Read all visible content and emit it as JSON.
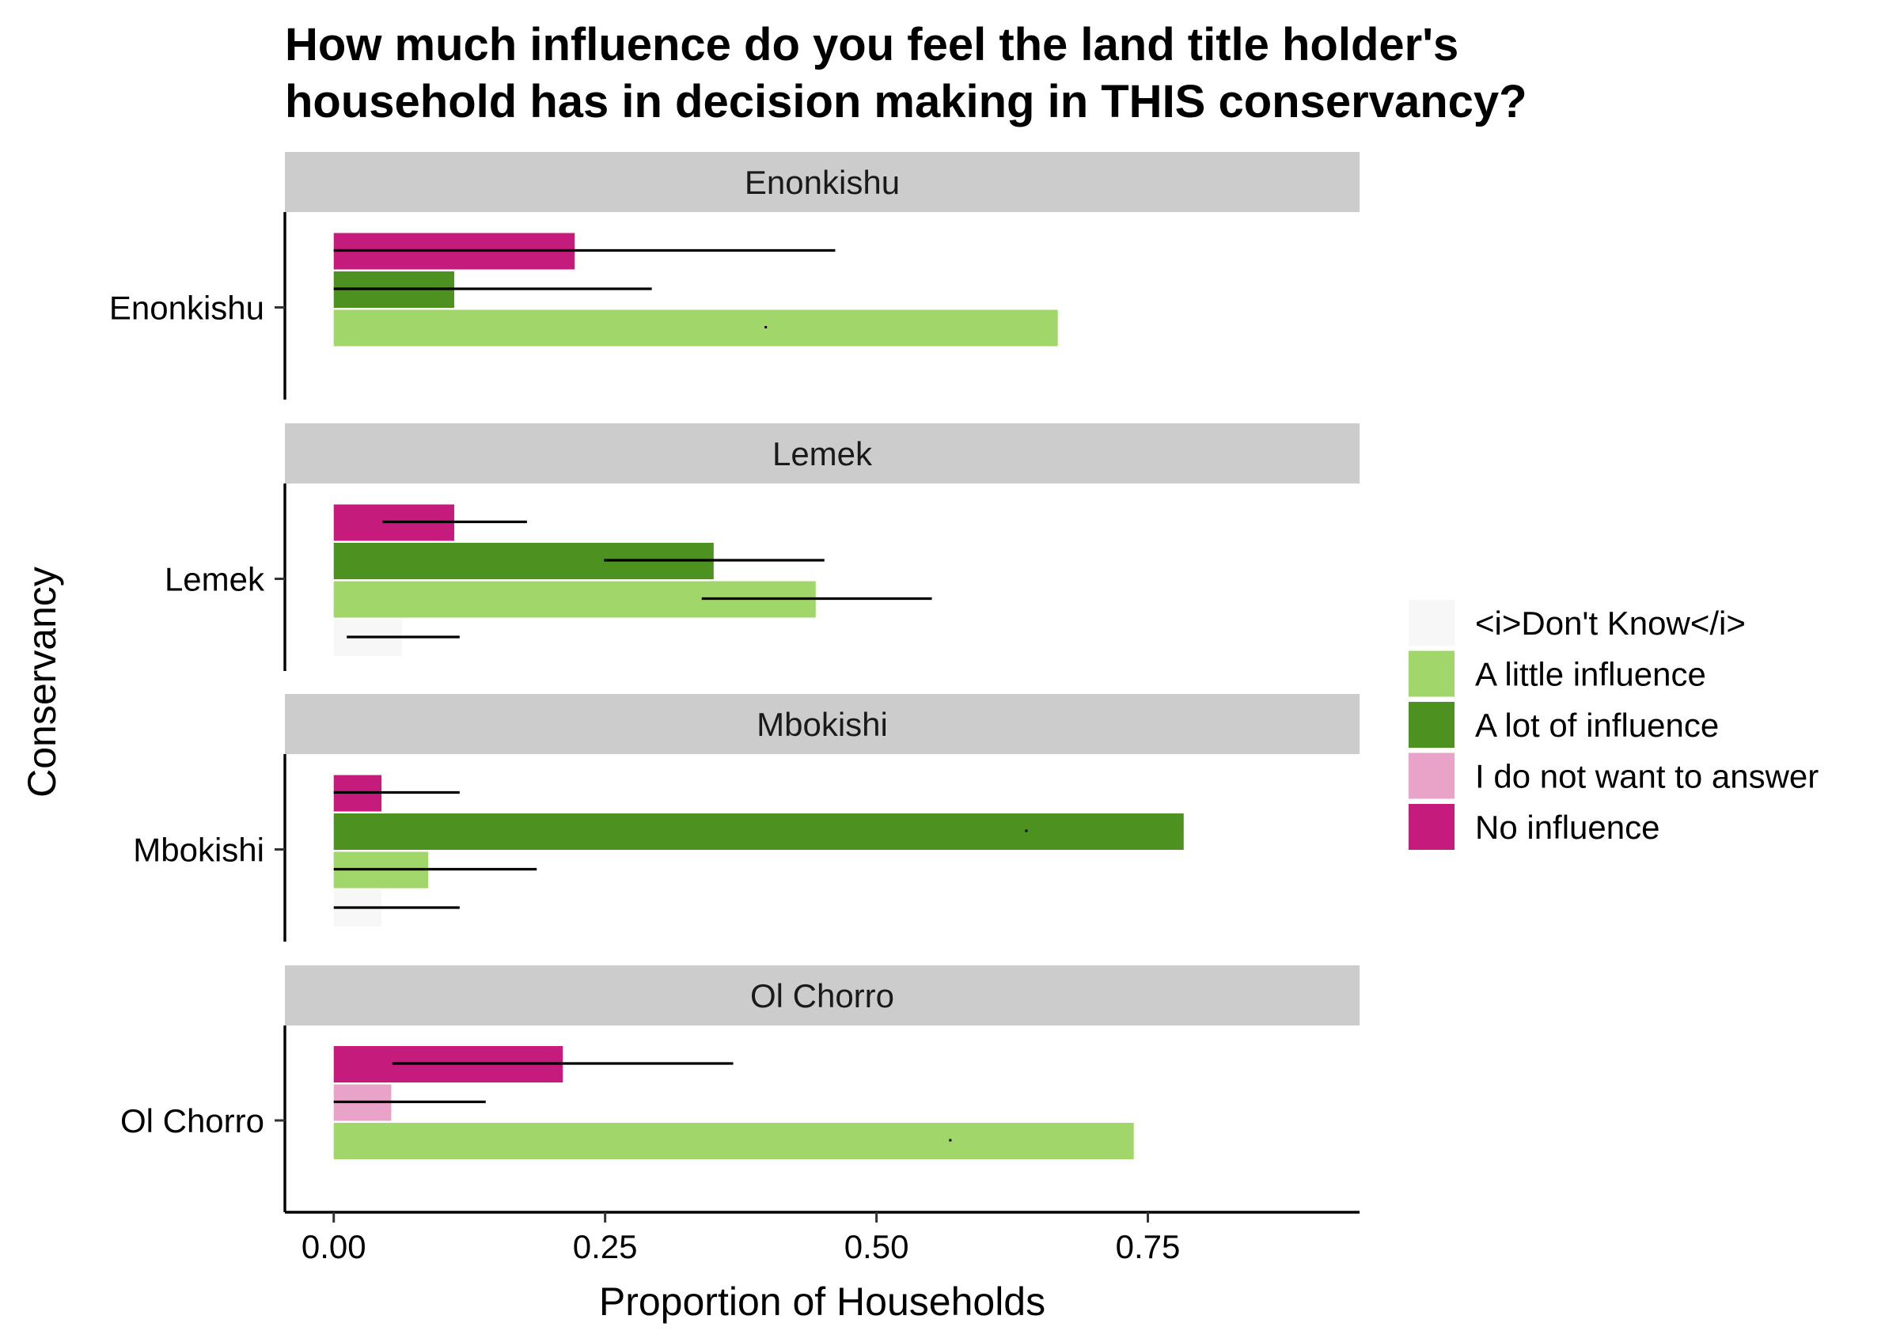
{
  "chart_data": {
    "type": "bar",
    "orientation": "horizontal",
    "faceted": true,
    "title": "How much influence do you feel the land title holder's household has in decision making in THIS conservancy?",
    "title_lines": [
      "How much influence do you feel the land title holder's",
      "household has in decision making in THIS conservancy?"
    ],
    "xlabel": "Proportion of Households",
    "ylabel": "Conservancy",
    "xlim": [
      -0.045,
      0.945
    ],
    "x_ticks": [
      0,
      0.25,
      0.5,
      0.75
    ],
    "x_tick_labels": [
      "0.00",
      "0.25",
      "0.50",
      "0.75"
    ],
    "grid": false,
    "legend_position": "right",
    "legend": [
      {
        "name": "<i>Don't Know</i>",
        "color": "#f7f7f7"
      },
      {
        "name": "A little influence",
        "color": "#a1d76a"
      },
      {
        "name": "A lot of influence",
        "color": "#4d9221"
      },
      {
        "name": "I do not want to answer",
        "color": "#e9a3c9"
      },
      {
        "name": "No influence",
        "color": "#c51b7d"
      }
    ],
    "panels": [
      {
        "strip": "Enonkishu",
        "category": "Enonkishu",
        "bars": [
          {
            "series": "No influence",
            "slot": 0,
            "value": 0.222,
            "err": [
              0.0,
              0.462
            ]
          },
          {
            "series": "A lot of influence",
            "slot": 1,
            "value": 0.111,
            "err": [
              0.0,
              0.293
            ]
          },
          {
            "series": "A little influence",
            "slot": 2,
            "value": 0.667,
            "err": [
              0.398,
              0.398
            ]
          }
        ]
      },
      {
        "strip": "Lemek",
        "category": "Lemek",
        "bars": [
          {
            "series": "No influence",
            "slot": 0,
            "value": 0.111,
            "err": [
              0.045,
              0.178
            ]
          },
          {
            "series": "A lot of influence",
            "slot": 1,
            "value": 0.35,
            "err": [
              0.249,
              0.452
            ]
          },
          {
            "series": "A little influence",
            "slot": 2,
            "value": 0.444,
            "err": [
              0.339,
              0.551
            ]
          },
          {
            "series": "<i>Don't Know</i>",
            "slot": 3,
            "value": 0.063,
            "err": [
              0.012,
              0.116
            ]
          }
        ]
      },
      {
        "strip": "Mbokishi",
        "category": "Mbokishi",
        "bars": [
          {
            "series": "No influence",
            "slot": 0,
            "value": 0.044,
            "err": [
              0.0,
              0.116
            ]
          },
          {
            "series": "A lot of influence",
            "slot": 1,
            "value": 0.783,
            "err": [
              0.638,
              0.638
            ]
          },
          {
            "series": "A little influence",
            "slot": 2,
            "value": 0.087,
            "err": [
              0.0,
              0.187
            ]
          },
          {
            "series": "<i>Don't Know</i>",
            "slot": 3,
            "value": 0.044,
            "err": [
              0.0,
              0.116
            ]
          }
        ]
      },
      {
        "strip": "Ol Chorro",
        "category": "Ol Chorro",
        "bars": [
          {
            "series": "No influence",
            "slot": 0,
            "value": 0.211,
            "err": [
              0.054,
              0.368
            ]
          },
          {
            "series": "I do not want to answer",
            "slot": 1,
            "value": 0.053,
            "err": [
              0.0,
              0.14
            ]
          },
          {
            "series": "A little influence",
            "slot": 2,
            "value": 0.737,
            "err": [
              0.568,
              0.568
            ]
          }
        ]
      }
    ]
  }
}
